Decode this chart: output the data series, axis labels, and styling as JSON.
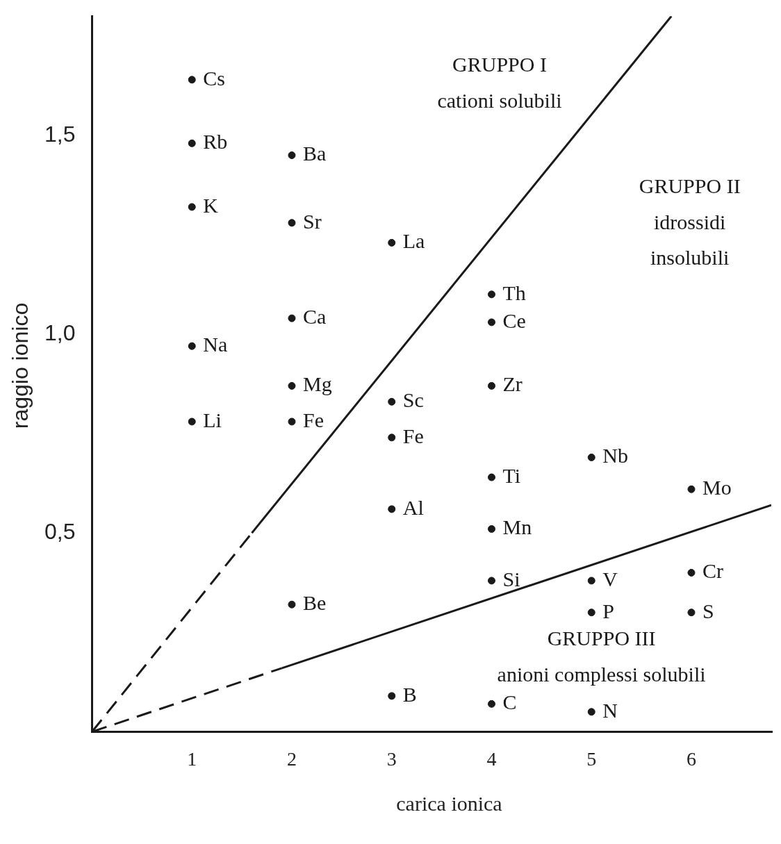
{
  "chart_data": {
    "type": "scatter",
    "xlabel": "carica ionica",
    "ylabel": "raggio ionico",
    "xlim": [
      0,
      6.8
    ],
    "ylim": [
      0,
      1.8
    ],
    "xticks": [
      1,
      2,
      3,
      4,
      5,
      6
    ],
    "yticks": [
      {
        "value": 0.5,
        "label": "0,5"
      },
      {
        "value": 1.0,
        "label": "1,0"
      },
      {
        "value": 1.5,
        "label": "1,5"
      }
    ],
    "grid": false,
    "legend": false,
    "marker": "circle",
    "annotations": [
      "GRUPPO I",
      "cationi solubili",
      "GRUPPO II",
      "idrossidi",
      "insolubili",
      "GRUPPO III",
      "anioni complessi solubili"
    ],
    "series": [
      {
        "color": "#1a1a1a",
        "x": [
          1,
          1,
          1,
          1,
          1,
          2,
          2,
          2,
          2,
          2,
          2,
          3,
          3,
          3,
          3,
          3,
          4,
          4,
          4,
          4,
          4,
          4,
          4,
          5,
          5,
          5,
          5,
          6,
          6,
          6
        ],
        "values": [
          1.64,
          1.48,
          1.32,
          0.97,
          0.78,
          1.45,
          1.28,
          1.04,
          0.87,
          0.78,
          0.32,
          1.23,
          0.83,
          0.74,
          0.56,
          0.09,
          1.1,
          1.03,
          0.87,
          0.64,
          0.51,
          0.38,
          0.07,
          0.69,
          0.38,
          0.3,
          0.05,
          0.61,
          0.4,
          0.3
        ],
        "value_labels": [
          "Cs",
          "Rb",
          "K",
          "Na",
          "Li",
          "Ba",
          "Sr",
          "Ca",
          "Mg",
          "Fe",
          "Be",
          "La",
          "Sc",
          "Fe",
          "Al",
          "B",
          "Th",
          "Ce",
          "Zr",
          "Ti",
          "Mn",
          "Si",
          "C",
          "Nb",
          "V",
          "P",
          "N",
          "Mo",
          "Cr",
          "S"
        ]
      },
      {
        "type": "line",
        "color": "#1a1a1a",
        "line_style": "dashed",
        "marker": "none",
        "x": [
          0,
          1.6
        ],
        "values": [
          0,
          0.5
        ]
      },
      {
        "type": "line",
        "color": "#1a1a1a",
        "line_style": "solid",
        "marker": "none",
        "x": [
          1.6,
          5.8
        ],
        "values": [
          0.5,
          1.8
        ]
      },
      {
        "type": "line",
        "color": "#1a1a1a",
        "line_style": "dashed",
        "marker": "none",
        "x": [
          0,
          1.9
        ],
        "values": [
          0,
          0.16
        ]
      },
      {
        "type": "line",
        "color": "#1a1a1a",
        "line_style": "solid",
        "marker": "none",
        "x": [
          1.9,
          6.8
        ],
        "values": [
          0.16,
          0.57
        ]
      }
    ]
  }
}
